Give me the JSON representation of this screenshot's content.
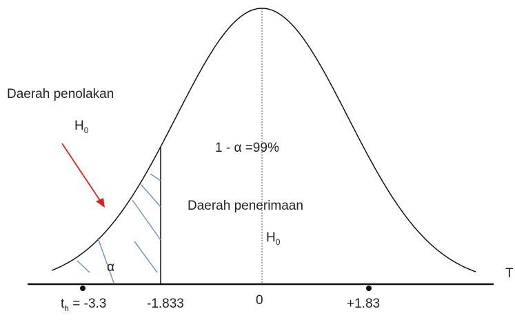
{
  "rejection_label": "Daerah penolakan",
  "rejection_h": {
    "base": "H",
    "sub": "0"
  },
  "acceptance_prob": "1 - α =99%",
  "acceptance_label": "Daerah penerimaan",
  "acceptance_h": {
    "base": "H",
    "sub": "0"
  },
  "alpha": "α",
  "axis_label": "T",
  "ticks": {
    "t_h": {
      "base": "t",
      "sub": "h",
      "rest": " = -3.3"
    },
    "critical_left": "-1.833",
    "center": "0",
    "critical_right": "+1.83"
  }
}
